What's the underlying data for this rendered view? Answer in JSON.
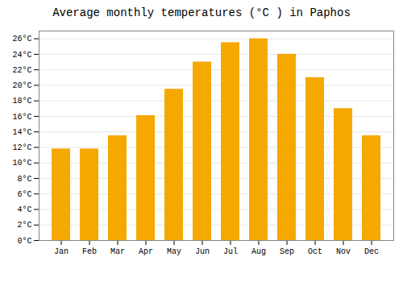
{
  "chart_data": {
    "type": "bar",
    "title": "Average monthly temperatures (°C ) in Paphos",
    "categories": [
      "Jan",
      "Feb",
      "Mar",
      "Apr",
      "May",
      "Jun",
      "Jul",
      "Aug",
      "Sep",
      "Oct",
      "Nov",
      "Dec"
    ],
    "values": [
      11.8,
      11.8,
      13.5,
      16.1,
      19.5,
      23.0,
      25.5,
      26.0,
      24.0,
      21.0,
      17.0,
      13.5
    ],
    "color": "#F5A800",
    "ylim": [
      0,
      27
    ],
    "yticks": [
      {
        "value": 0,
        "label": "0°C"
      },
      {
        "value": 2,
        "label": "2°C"
      },
      {
        "value": 4,
        "label": "4°C"
      },
      {
        "value": 6,
        "label": "6°C"
      },
      {
        "value": 8,
        "label": "8°C"
      },
      {
        "value": 10,
        "label": "10°C"
      },
      {
        "value": 12,
        "label": "12°C"
      },
      {
        "value": 14,
        "label": "14°C"
      },
      {
        "value": 16,
        "label": "16°C"
      },
      {
        "value": 18,
        "label": "18°C"
      },
      {
        "value": 20,
        "label": "20°C"
      },
      {
        "value": 22,
        "label": "22°C"
      },
      {
        "value": 24,
        "label": "24°C"
      },
      {
        "value": 26,
        "label": "26°C"
      }
    ],
    "grid": true
  }
}
